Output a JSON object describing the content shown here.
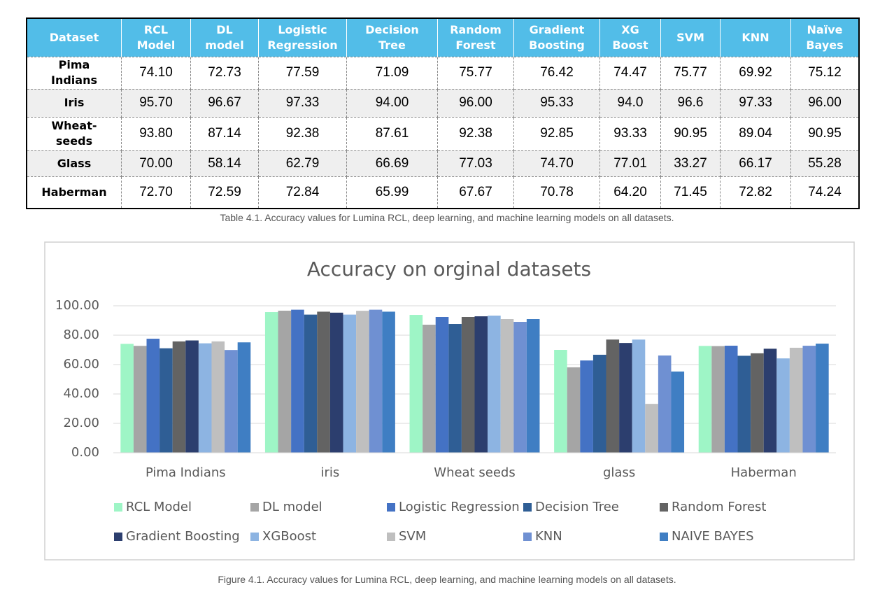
{
  "table": {
    "header": [
      "Dataset",
      "RCL\nModel",
      "DL\nmodel",
      "Logistic\nRegression",
      "Decision\nTree",
      "Random\nForest",
      "Gradient\nBoosting",
      "XG\nBoost",
      "SVM",
      "KNN",
      "Naïve\nBayes"
    ],
    "rows": [
      [
        "Pima\nIndians",
        "74.10",
        "72.73",
        "77.59",
        "71.09",
        "75.77",
        "76.42",
        "74.47",
        "75.77",
        "69.92",
        "75.12"
      ],
      [
        "Iris",
        "95.70",
        "96.67",
        "97.33",
        "94.00",
        "96.00",
        "95.33",
        "94.0",
        "96.6",
        "97.33",
        "96.00"
      ],
      [
        "Wheat-\nseeds",
        "93.80",
        "87.14",
        "92.38",
        "87.61",
        "92.38",
        "92.85",
        "93.33",
        "90.95",
        "89.04",
        "90.95"
      ],
      [
        "Glass",
        "70.00",
        "58.14",
        "62.79",
        "66.69",
        "77.03",
        "74.70",
        "77.01",
        "33.27",
        "66.17",
        "55.28"
      ],
      [
        "Haberman",
        "72.70",
        "72.59",
        "72.84",
        "65.99",
        "67.67",
        "70.78",
        "64.20",
        "71.45",
        "72.82",
        "74.24"
      ]
    ],
    "caption": "Table 4.1. Accuracy values for Lumina RCL, deep learning, and machine learning models on all datasets."
  },
  "chart_data": {
    "type": "bar",
    "title": "Accuracy on orginal datasets",
    "categories": [
      "Pima Indians",
      "iris",
      "Wheat seeds",
      "glass",
      "Haberman"
    ],
    "series": [
      {
        "name": "RCL Model",
        "color": "#9ef5c6",
        "values": [
          74.1,
          95.7,
          93.8,
          70.0,
          72.7
        ]
      },
      {
        "name": "DL model",
        "color": "#a5a5a5",
        "values": [
          72.73,
          96.67,
          87.14,
          58.14,
          72.59
        ]
      },
      {
        "name": "Logistic Regression",
        "color": "#4472c4",
        "values": [
          77.59,
          97.33,
          92.38,
          62.79,
          72.84
        ]
      },
      {
        "name": "Decision Tree",
        "color": "#2f5e95",
        "values": [
          71.09,
          94.0,
          87.61,
          66.69,
          65.99
        ]
      },
      {
        "name": "Random Forest",
        "color": "#636363",
        "values": [
          75.77,
          96.0,
          92.38,
          77.03,
          67.67
        ]
      },
      {
        "name": "Gradient Boosting",
        "color": "#2c3e6e",
        "values": [
          76.42,
          95.33,
          92.85,
          74.7,
          70.78
        ]
      },
      {
        "name": "XGBoost",
        "color": "#8db4e2",
        "values": [
          74.47,
          94.0,
          93.33,
          77.01,
          64.2
        ]
      },
      {
        "name": "SVM",
        "color": "#bfbfbf",
        "values": [
          75.77,
          96.6,
          90.95,
          33.27,
          71.45
        ]
      },
      {
        "name": "KNN",
        "color": "#6f90d2",
        "values": [
          69.92,
          97.33,
          89.04,
          66.17,
          72.82
        ]
      },
      {
        "name": "NAIVE BAYES",
        "color": "#3f7ec3",
        "values": [
          75.12,
          96.0,
          90.95,
          55.28,
          74.24
        ]
      }
    ],
    "ylim": [
      0,
      100
    ],
    "yticks": [
      {
        "value": 0,
        "label": "0.00"
      },
      {
        "value": 20,
        "label": "20.00"
      },
      {
        "value": 40,
        "label": "40.00"
      },
      {
        "value": 60,
        "label": "60.00"
      },
      {
        "value": 80,
        "label": "80.00"
      },
      {
        "value": 100,
        "label": "100.00"
      }
    ],
    "grid": true,
    "legend": "bottom"
  },
  "figure_caption": "Figure 4.1. Accuracy values for Lumina RCL, deep learning, and machine learning models on all datasets."
}
